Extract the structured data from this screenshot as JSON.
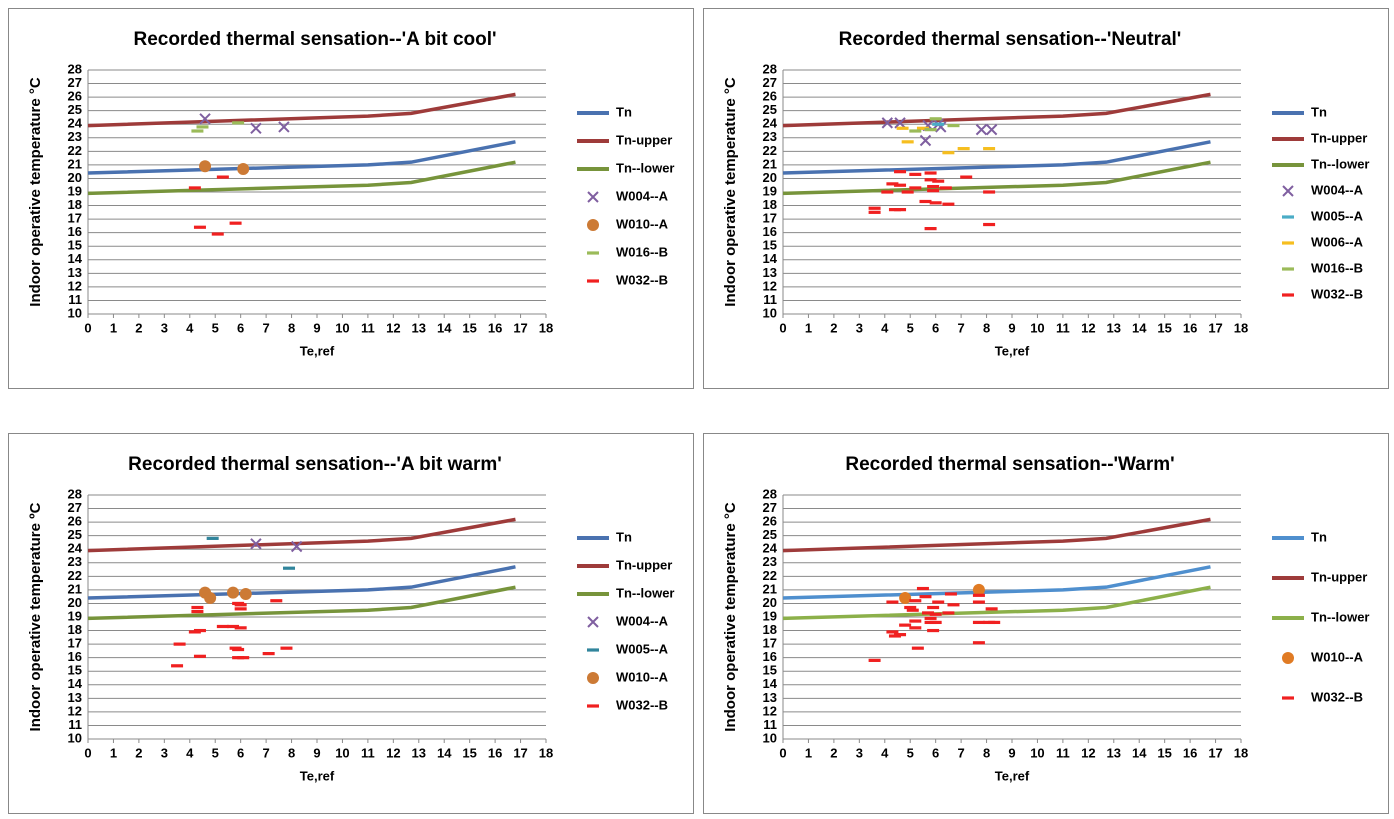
{
  "chart_data": [
    {
      "type": "scatter",
      "title": "Recorded thermal sensation--'A bit cool'",
      "x_label": "Te,ref",
      "y_label": "Indoor operative temperature °C",
      "xlim": [
        0,
        18
      ],
      "ylim": [
        10,
        28
      ],
      "xticks": [
        0,
        1,
        2,
        3,
        4,
        5,
        6,
        7,
        8,
        9,
        10,
        11,
        12,
        13,
        14,
        15,
        16,
        17,
        18
      ],
      "yticks": [
        10,
        11,
        12,
        13,
        14,
        15,
        16,
        17,
        18,
        19,
        20,
        21,
        22,
        23,
        24,
        25,
        26,
        27,
        28
      ],
      "grid": true,
      "legend": "right",
      "series": [
        {
          "name": "Tn",
          "color": "#4a72b0",
          "marker": "line",
          "x": [
            0,
            11,
            12.7,
            16.8
          ],
          "values": [
            20.4,
            21.0,
            21.2,
            22.7
          ]
        },
        {
          "name": "Tn-upper",
          "color": "#9e3b3a",
          "marker": "line",
          "x": [
            0,
            11,
            12.7,
            16.8
          ],
          "values": [
            23.9,
            24.6,
            24.8,
            26.2
          ]
        },
        {
          "name": "Tn--lower",
          "color": "#77943b",
          "marker": "line",
          "x": [
            0,
            11,
            12.7,
            16.8
          ],
          "values": [
            18.9,
            19.5,
            19.7,
            21.2
          ]
        },
        {
          "name": "W004--A",
          "color": "#7f5fa0",
          "marker": "x",
          "x": [
            4.6,
            6.6,
            7.7
          ],
          "values": [
            24.4,
            23.7,
            23.8
          ]
        },
        {
          "name": "W010--A",
          "color": "#cc7a35",
          "marker": "circle",
          "x": [
            4.6,
            6.1
          ],
          "values": [
            20.9,
            20.7
          ]
        },
        {
          "name": "W016--B",
          "color": "#9bbb59",
          "marker": "dash",
          "x": [
            4.3,
            4.5,
            5.9
          ],
          "values": [
            23.5,
            23.8,
            24.1
          ]
        },
        {
          "name": "W032--B",
          "color": "#f02020",
          "marker": "dash",
          "x": [
            4.2,
            5.3,
            4.4,
            5.1,
            5.8
          ],
          "values": [
            19.3,
            20.1,
            16.4,
            15.9,
            16.7
          ]
        }
      ]
    },
    {
      "type": "scatter",
      "title": "Recorded thermal sensation--'Neutral'",
      "x_label": "Te,ref",
      "y_label": "Indoor operative temperature °C",
      "xlim": [
        0,
        18
      ],
      "ylim": [
        10,
        28
      ],
      "xticks": [
        0,
        1,
        2,
        3,
        4,
        5,
        6,
        7,
        8,
        9,
        10,
        11,
        12,
        13,
        14,
        15,
        16,
        17,
        18
      ],
      "yticks": [
        10,
        11,
        12,
        13,
        14,
        15,
        16,
        17,
        18,
        19,
        20,
        21,
        22,
        23,
        24,
        25,
        26,
        27,
        28
      ],
      "grid": true,
      "legend": "right",
      "series": [
        {
          "name": "Tn",
          "color": "#4a72b0",
          "marker": "line",
          "x": [
            0,
            11,
            12.7,
            16.8
          ],
          "values": [
            20.4,
            21.0,
            21.2,
            22.7
          ]
        },
        {
          "name": "Tn-upper",
          "color": "#9e3b3a",
          "marker": "line",
          "x": [
            0,
            11,
            12.7,
            16.8
          ],
          "values": [
            23.9,
            24.6,
            24.8,
            26.2
          ]
        },
        {
          "name": "Tn--lower",
          "color": "#77943b",
          "marker": "line",
          "x": [
            0,
            11,
            12.7,
            16.8
          ],
          "values": [
            18.9,
            19.5,
            19.7,
            21.2
          ]
        },
        {
          "name": "W004--A",
          "color": "#7f5fa0",
          "marker": "x",
          "x": [
            4.1,
            4.6,
            5.7,
            6.1,
            6.2,
            7.8,
            8.2,
            5.6
          ],
          "values": [
            24.1,
            24.1,
            23.9,
            24.0,
            23.8,
            23.6,
            23.6,
            22.8
          ]
        },
        {
          "name": "W005--A",
          "color": "#4aacc6",
          "marker": "dash",
          "x": [
            6.1
          ],
          "values": [
            24.0
          ]
        },
        {
          "name": "W006--A",
          "color": "#f6be1f",
          "marker": "dash",
          "x": [
            4.7,
            4.9,
            6.5,
            7.1,
            8.1,
            5.5
          ],
          "values": [
            23.7,
            22.7,
            21.9,
            22.2,
            22.2,
            23.7
          ]
        },
        {
          "name": "W016--B",
          "color": "#9bbb59",
          "marker": "dash",
          "x": [
            5.2,
            5.8,
            6.0,
            6.7
          ],
          "values": [
            23.5,
            23.6,
            24.4,
            23.9
          ]
        },
        {
          "name": "W032--B",
          "color": "#f02020",
          "marker": "dash",
          "x": [
            3.6,
            3.6,
            4.1,
            4.3,
            4.4,
            4.6,
            4.6,
            4.6,
            4.9,
            5.2,
            5.2,
            5.6,
            5.8,
            5.8,
            5.9,
            5.9,
            6.0,
            6.1,
            6.5,
            6.4,
            7.2,
            8.1,
            8.1,
            5.8
          ],
          "values": [
            17.8,
            17.5,
            19.0,
            19.6,
            17.7,
            17.7,
            20.5,
            19.5,
            19.0,
            20.3,
            19.3,
            18.3,
            20.4,
            19.9,
            19.4,
            19.1,
            18.2,
            19.8,
            18.1,
            19.3,
            20.1,
            19.0,
            16.6,
            16.3
          ]
        }
      ]
    },
    {
      "type": "scatter",
      "title": "Recorded thermal sensation--'A bit warm'",
      "x_label": "Te,ref",
      "y_label": "Indoor operative temperature ºC",
      "xlim": [
        0,
        18
      ],
      "ylim": [
        10,
        28
      ],
      "xticks": [
        0,
        1,
        2,
        3,
        4,
        5,
        6,
        7,
        8,
        9,
        10,
        11,
        12,
        13,
        14,
        15,
        16,
        17,
        18
      ],
      "yticks": [
        10,
        11,
        12,
        13,
        14,
        15,
        16,
        17,
        18,
        19,
        20,
        21,
        22,
        23,
        24,
        25,
        26,
        27,
        28
      ],
      "grid": true,
      "legend": "right",
      "series": [
        {
          "name": "Tn",
          "color": "#4a72b0",
          "marker": "line",
          "x": [
            0,
            11,
            12.7,
            16.8
          ],
          "values": [
            20.4,
            21.0,
            21.2,
            22.7
          ]
        },
        {
          "name": "Tn-upper",
          "color": "#9e3b3a",
          "marker": "line",
          "x": [
            0,
            11,
            12.7,
            16.8
          ],
          "values": [
            23.9,
            24.6,
            24.8,
            26.2
          ]
        },
        {
          "name": "Tn--lower",
          "color": "#77943b",
          "marker": "line",
          "x": [
            0,
            11,
            12.7,
            16.8
          ],
          "values": [
            18.9,
            19.5,
            19.7,
            21.2
          ]
        },
        {
          "name": "W004--A",
          "color": "#7f5fa0",
          "marker": "x",
          "x": [
            6.6,
            8.2
          ],
          "values": [
            24.4,
            24.2
          ]
        },
        {
          "name": "W005--A",
          "color": "#31859c",
          "marker": "dash",
          "x": [
            4.9,
            7.9
          ],
          "values": [
            24.8,
            22.6
          ]
        },
        {
          "name": "W010--A",
          "color": "#cc7a35",
          "marker": "circle",
          "x": [
            4.6,
            4.8,
            5.7,
            6.2
          ],
          "values": [
            20.8,
            20.4,
            20.8,
            20.7
          ]
        },
        {
          "name": "W032--B",
          "color": "#f02020",
          "marker": "dash",
          "x": [
            3.6,
            3.5,
            4.2,
            4.4,
            4.3,
            4.3,
            4.4,
            5.3,
            5.7,
            6.0,
            5.8,
            5.9,
            5.9,
            6.0,
            6.0,
            5.9,
            7.1,
            7.4,
            7.8,
            6.1
          ],
          "values": [
            17.0,
            15.4,
            17.9,
            18.0,
            19.7,
            19.4,
            16.1,
            18.3,
            18.3,
            18.2,
            16.7,
            16.6,
            16.0,
            19.9,
            19.6,
            20.0,
            16.3,
            20.2,
            16.7,
            16.0
          ]
        }
      ]
    },
    {
      "type": "scatter",
      "title": "Recorded thermal sensation--'Warm'",
      "x_label": "Te,ref",
      "y_label": "Indoor operative temperature °C",
      "xlim": [
        0,
        18
      ],
      "ylim": [
        10,
        28
      ],
      "xticks": [
        0,
        1,
        2,
        3,
        4,
        5,
        6,
        7,
        8,
        9,
        10,
        11,
        12,
        13,
        14,
        15,
        16,
        17,
        18
      ],
      "yticks": [
        10,
        11,
        12,
        13,
        14,
        15,
        16,
        17,
        18,
        19,
        20,
        21,
        22,
        23,
        24,
        25,
        26,
        27,
        28
      ],
      "grid": true,
      "legend": "right",
      "series": [
        {
          "name": "Tn",
          "color": "#4f8fce",
          "marker": "line",
          "x": [
            0,
            11,
            12.7,
            16.8
          ],
          "values": [
            20.4,
            21.0,
            21.2,
            22.7
          ]
        },
        {
          "name": "Tn-upper",
          "color": "#9e3b3a",
          "marker": "line",
          "x": [
            0,
            11,
            12.7,
            16.8
          ],
          "values": [
            23.9,
            24.6,
            24.8,
            26.2
          ]
        },
        {
          "name": "Tn--lower",
          "color": "#8cb04a",
          "marker": "line",
          "x": [
            0,
            11,
            12.7,
            16.8
          ],
          "values": [
            18.9,
            19.5,
            19.7,
            21.2
          ]
        },
        {
          "name": "W010--A",
          "color": "#e07b24",
          "marker": "circle",
          "x": [
            4.8,
            7.7
          ],
          "values": [
            20.4,
            21.0
          ]
        },
        {
          "name": "W032--B",
          "color": "#f02020",
          "marker": "dash",
          "x": [
            3.6,
            4.3,
            4.3,
            4.4,
            4.6,
            4.8,
            5.0,
            5.2,
            5.1,
            5.2,
            5.2,
            5.3,
            5.5,
            5.6,
            5.7,
            5.8,
            5.8,
            5.9,
            5.9,
            6.0,
            6.1,
            6.0,
            6.5,
            6.6,
            6.7,
            7.7,
            7.7,
            7.7,
            7.7,
            8.1,
            8.2,
            8.3
          ],
          "values": [
            15.8,
            20.1,
            17.9,
            17.6,
            17.7,
            18.4,
            19.7,
            20.2,
            19.5,
            18.7,
            18.2,
            16.7,
            21.1,
            20.5,
            19.3,
            18.6,
            18.9,
            19.7,
            18.0,
            19.2,
            20.1,
            18.6,
            19.3,
            20.7,
            19.9,
            20.6,
            20.1,
            18.6,
            17.1,
            18.6,
            19.6,
            18.6
          ]
        }
      ]
    }
  ]
}
